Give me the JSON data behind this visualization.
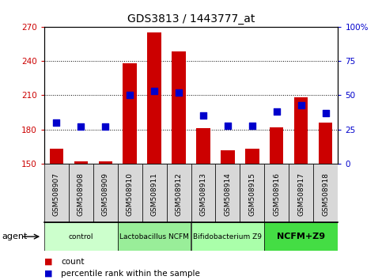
{
  "title": "GDS3813 / 1443777_at",
  "samples": [
    "GSM508907",
    "GSM508908",
    "GSM508909",
    "GSM508910",
    "GSM508911",
    "GSM508912",
    "GSM508913",
    "GSM508914",
    "GSM508915",
    "GSM508916",
    "GSM508917",
    "GSM508918"
  ],
  "bar_values": [
    163,
    152,
    152,
    238,
    265,
    248,
    181,
    162,
    163,
    182,
    208,
    186
  ],
  "bar_base": 150,
  "percentile_values": [
    30,
    27,
    27,
    50,
    53,
    52,
    35,
    28,
    28,
    38,
    43,
    37
  ],
  "ylim_left": [
    150,
    270
  ],
  "ylim_right": [
    0,
    100
  ],
  "yticks_left": [
    150,
    180,
    210,
    240,
    270
  ],
  "yticks_right": [
    0,
    25,
    50,
    75,
    100
  ],
  "ytick_labels_right": [
    "0",
    "25",
    "50",
    "75",
    "100%"
  ],
  "bar_color": "#cc0000",
  "dot_color": "#0000cc",
  "groups": [
    {
      "label": "control",
      "start": 0,
      "end": 3,
      "color": "#ccffcc"
    },
    {
      "label": "Lactobacillus NCFM",
      "start": 3,
      "end": 6,
      "color": "#99ee99"
    },
    {
      "label": "Bifidobacterium Z9",
      "start": 6,
      "end": 9,
      "color": "#aaffaa"
    },
    {
      "label": "NCFM+Z9",
      "start": 9,
      "end": 12,
      "color": "#44dd44"
    }
  ],
  "legend_count": "count",
  "legend_percentile": "percentile rank within the sample",
  "bar_width": 0.55,
  "dot_size": 28
}
